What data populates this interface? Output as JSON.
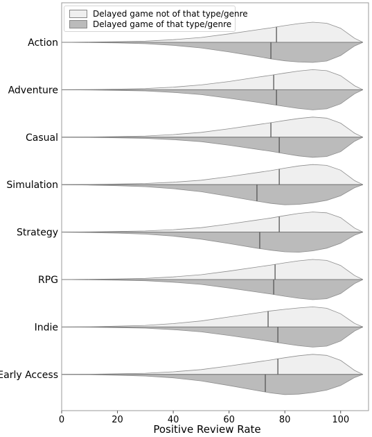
{
  "chart_data": {
    "type": "violin (split)",
    "xlabel": "Positive Review Rate",
    "xlim": [
      0,
      110
    ],
    "xticks": [
      0,
      20,
      40,
      60,
      80,
      100
    ],
    "categories": [
      "Action",
      "Adventure",
      "Casual",
      "Simulation",
      "Strategy",
      "RPG",
      "Indie",
      "Early Access"
    ],
    "legend": {
      "position": "top-left",
      "entries": [
        {
          "label": "Delayed game not of that type/genre",
          "color": "#efefef"
        },
        {
          "label": "Delayed game of that type/genre",
          "color": "#bbbbbb"
        }
      ]
    },
    "series": [
      {
        "name": "Delayed game not of that type/genre",
        "side": "upper",
        "color": "#efefef",
        "medians": [
          77,
          76,
          75,
          78,
          78,
          76.5,
          74,
          77.5
        ]
      },
      {
        "name": "Delayed game of that type/genre",
        "side": "lower",
        "color": "#bbbbbb",
        "medians": [
          75,
          77,
          78,
          70,
          71,
          76,
          77.5,
          73
        ]
      }
    ],
    "density_x": [
      0,
      10,
      20,
      30,
      40,
      50,
      60,
      70,
      75,
      80,
      85,
      90,
      95,
      100,
      105,
      108
    ],
    "density_upper": [
      [
        0,
        0.01,
        0.03,
        0.06,
        0.13,
        0.24,
        0.42,
        0.62,
        0.72,
        0.83,
        0.93,
        1.0,
        0.95,
        0.7,
        0.2,
        0
      ],
      [
        0,
        0.01,
        0.03,
        0.06,
        0.13,
        0.24,
        0.41,
        0.62,
        0.72,
        0.83,
        0.93,
        1.0,
        0.95,
        0.7,
        0.2,
        0
      ],
      [
        0,
        0.01,
        0.03,
        0.06,
        0.13,
        0.24,
        0.42,
        0.62,
        0.72,
        0.83,
        0.93,
        1.0,
        0.95,
        0.7,
        0.2,
        0
      ],
      [
        0,
        0.01,
        0.03,
        0.06,
        0.12,
        0.22,
        0.4,
        0.6,
        0.7,
        0.82,
        0.93,
        1.0,
        0.96,
        0.72,
        0.2,
        0
      ],
      [
        0,
        0.01,
        0.03,
        0.06,
        0.12,
        0.22,
        0.4,
        0.6,
        0.7,
        0.82,
        0.93,
        1.0,
        0.96,
        0.72,
        0.2,
        0
      ],
      [
        0,
        0.01,
        0.03,
        0.06,
        0.13,
        0.24,
        0.42,
        0.62,
        0.72,
        0.83,
        0.93,
        1.0,
        0.95,
        0.7,
        0.2,
        0
      ],
      [
        0,
        0.01,
        0.04,
        0.08,
        0.17,
        0.3,
        0.5,
        0.7,
        0.8,
        0.88,
        0.95,
        1.0,
        0.93,
        0.66,
        0.18,
        0
      ],
      [
        0,
        0.01,
        0.03,
        0.06,
        0.13,
        0.24,
        0.42,
        0.62,
        0.72,
        0.83,
        0.93,
        1.0,
        0.95,
        0.7,
        0.2,
        0
      ]
    ],
    "density_lower": [
      [
        0,
        0.01,
        0.03,
        0.07,
        0.15,
        0.28,
        0.48,
        0.7,
        0.82,
        0.92,
        0.98,
        1.0,
        0.93,
        0.66,
        0.18,
        0
      ],
      [
        0,
        0.01,
        0.03,
        0.06,
        0.13,
        0.24,
        0.42,
        0.62,
        0.72,
        0.83,
        0.93,
        1.0,
        0.95,
        0.7,
        0.2,
        0
      ],
      [
        0,
        0.01,
        0.03,
        0.06,
        0.12,
        0.22,
        0.4,
        0.6,
        0.7,
        0.82,
        0.93,
        1.0,
        0.96,
        0.72,
        0.2,
        0
      ],
      [
        0,
        0.02,
        0.05,
        0.1,
        0.2,
        0.35,
        0.58,
        0.82,
        0.93,
        1.0,
        0.98,
        0.9,
        0.78,
        0.55,
        0.15,
        0
      ],
      [
        0,
        0.02,
        0.05,
        0.1,
        0.2,
        0.35,
        0.57,
        0.8,
        0.9,
        0.98,
        1.0,
        0.93,
        0.8,
        0.56,
        0.15,
        0
      ],
      [
        0,
        0.01,
        0.03,
        0.06,
        0.13,
        0.24,
        0.42,
        0.62,
        0.72,
        0.83,
        0.93,
        1.0,
        0.95,
        0.7,
        0.2,
        0
      ],
      [
        0,
        0.01,
        0.03,
        0.06,
        0.13,
        0.24,
        0.42,
        0.62,
        0.72,
        0.83,
        0.93,
        1.0,
        0.95,
        0.7,
        0.2,
        0
      ],
      [
        0,
        0.01,
        0.04,
        0.08,
        0.17,
        0.32,
        0.55,
        0.8,
        0.92,
        1.0,
        0.98,
        0.9,
        0.78,
        0.55,
        0.15,
        0
      ]
    ]
  }
}
